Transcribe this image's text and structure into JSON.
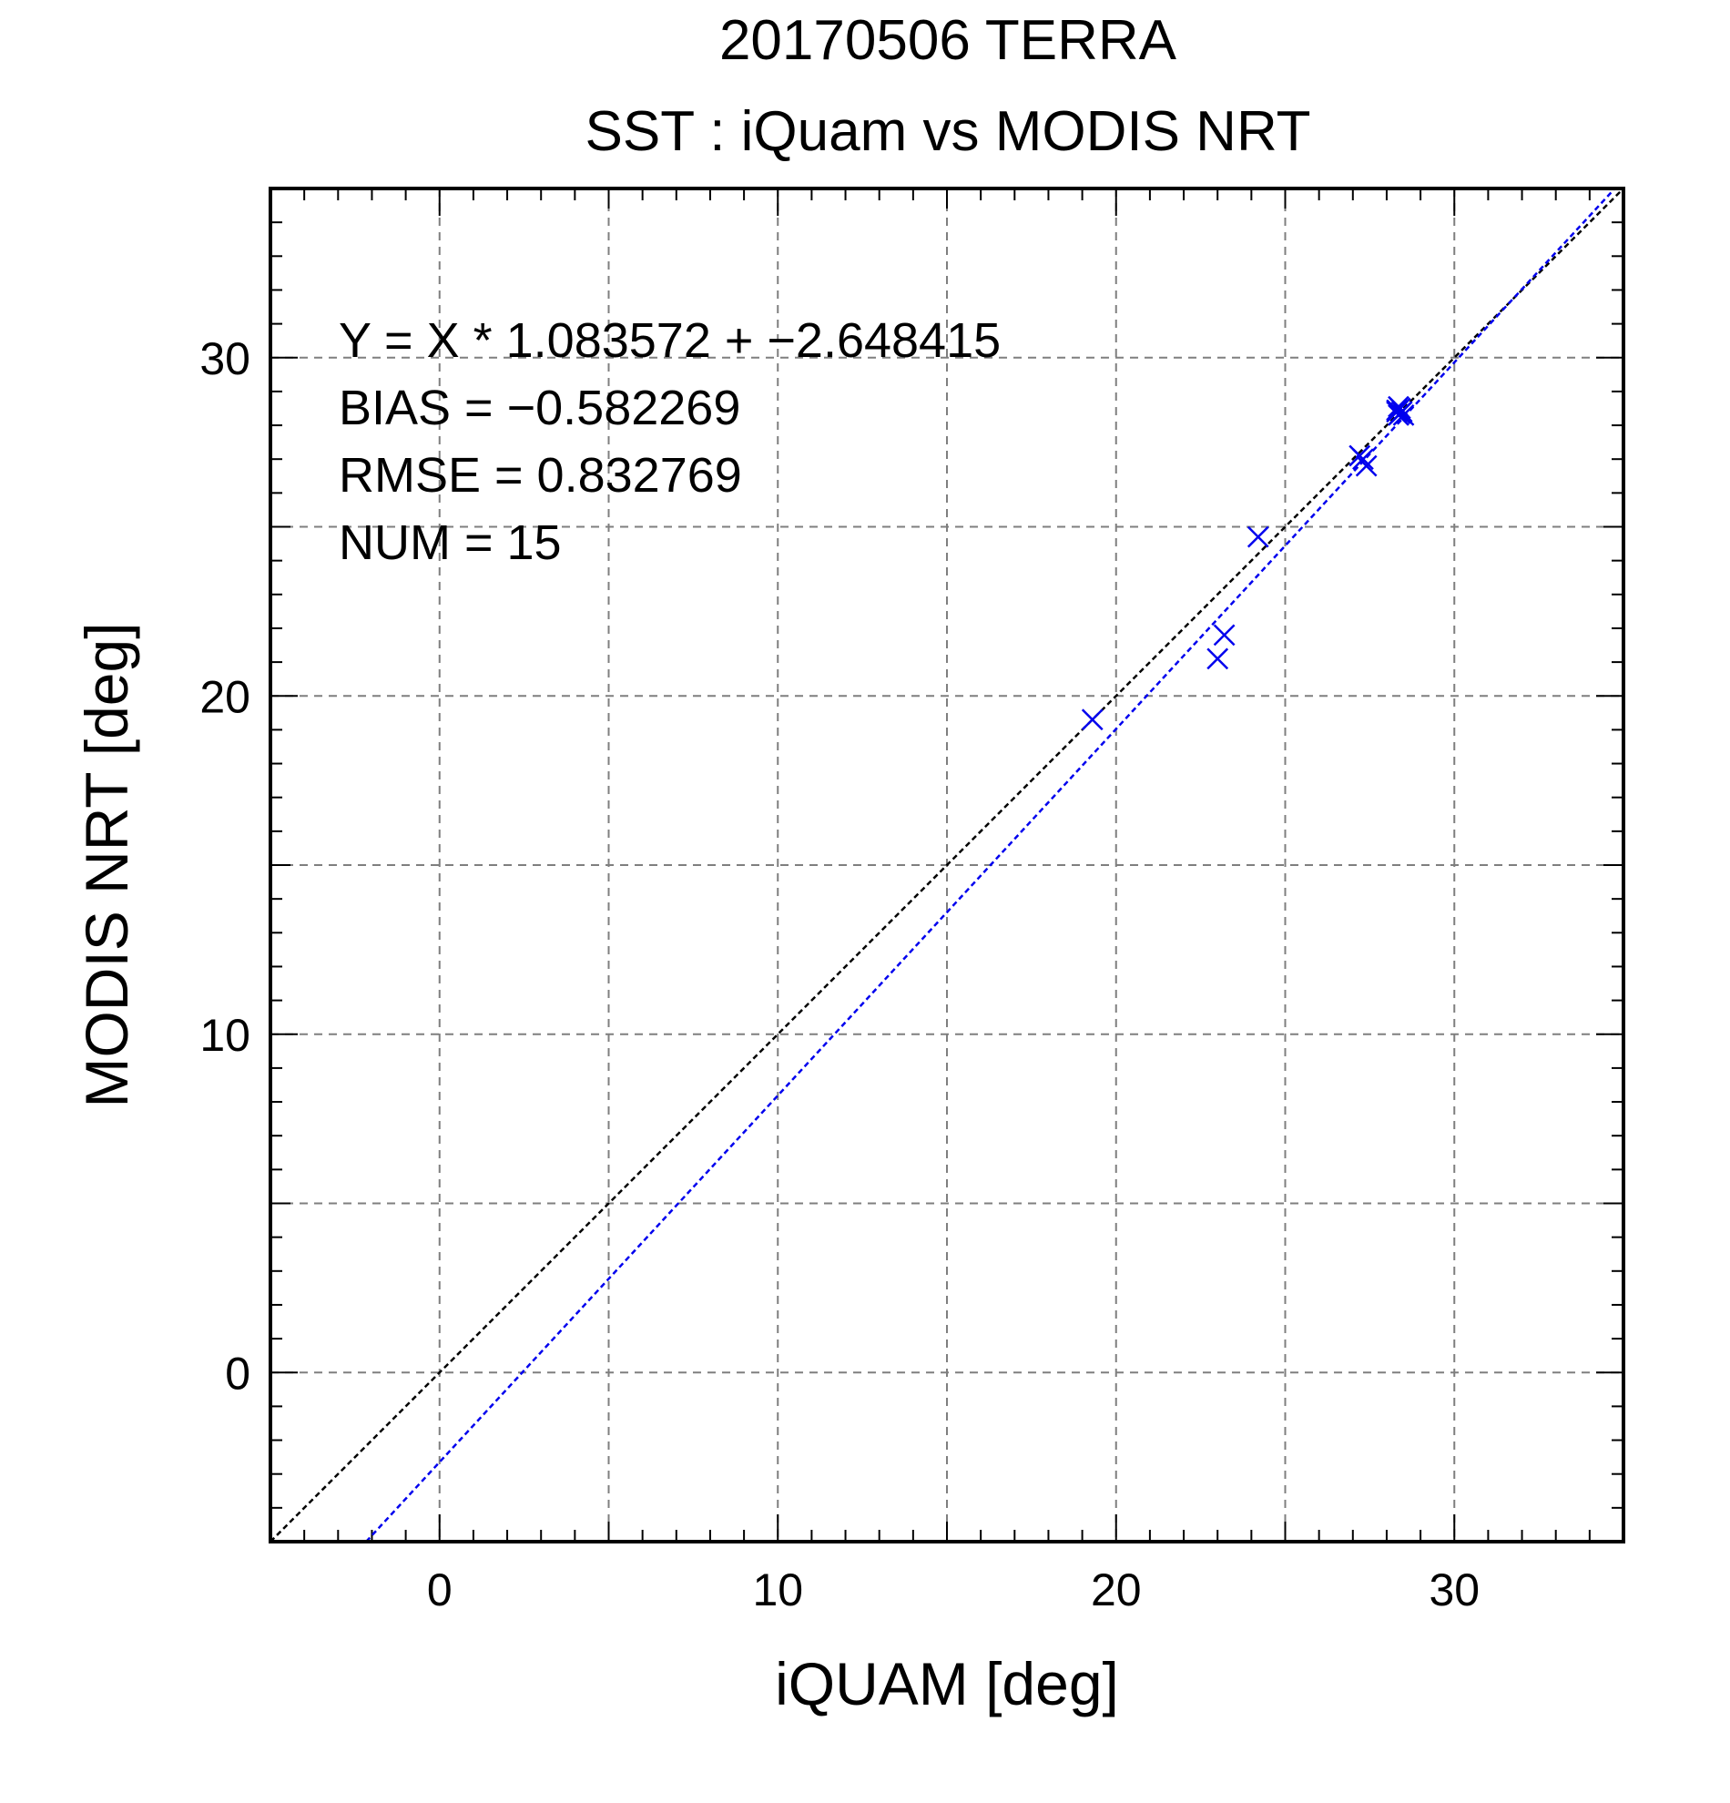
{
  "chart_data": {
    "type": "scatter",
    "title": "20170506 TERRA",
    "subtitle": "SST : iQuam vs MODIS NRT",
    "xlabel": "iQUAM [deg]",
    "ylabel": "MODIS NRT [deg]",
    "xlim": [
      -5,
      35
    ],
    "ylim": [
      -5,
      35
    ],
    "x_major_ticks": [
      0,
      10,
      20,
      30
    ],
    "y_major_ticks": [
      0,
      10,
      20,
      30
    ],
    "grid_step": 5,
    "minor_step": 1,
    "grid": true,
    "annotations": [
      "Y = X * 1.083572 + −2.648415",
      "BIAS = −0.582269",
      "RMSE = 0.832769",
      "NUM = 15"
    ],
    "fit_line": {
      "slope": 1.083572,
      "intercept": -2.648415,
      "color": "#0000ee"
    },
    "identity_line": {
      "slope": 1,
      "intercept": 0,
      "color": "#000000"
    },
    "series": [
      {
        "marker": "x",
        "color": "#0000ee",
        "x": [
          19.3,
          23.0,
          23.2,
          24.2,
          27.2,
          27.4,
          27.3,
          28.3,
          28.4,
          28.35,
          28.45,
          28.3,
          28.4,
          28.5,
          28.35
        ],
        "y": [
          19.3,
          21.1,
          21.8,
          24.7,
          27.1,
          26.8,
          27.0,
          28.4,
          28.5,
          28.3,
          28.4,
          28.45,
          28.35,
          28.3,
          28.55
        ]
      }
    ]
  }
}
